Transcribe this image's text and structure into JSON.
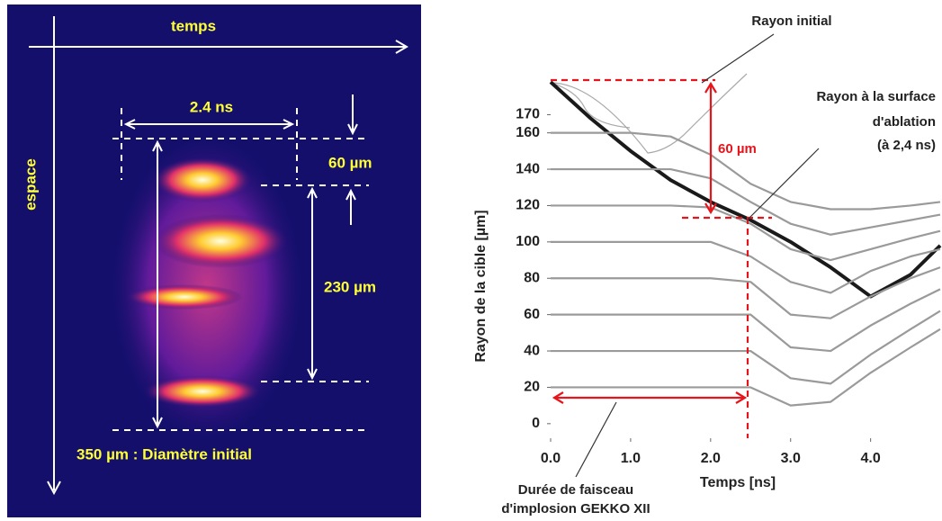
{
  "image_panel": {
    "time_label": "temps",
    "space_label": "espace",
    "duration": "2.4 ns",
    "gap": "60 µm",
    "span": "230 µm",
    "diameter": "350 µm : Diamètre initial"
  },
  "chart_data": {
    "type": "line",
    "y_label": "Rayon de la cible [µm]",
    "x_label": "Temps [ns]",
    "annotations": [
      "Rayon initial",
      "Rayon à la surface",
      "d'ablation",
      "(à 2,4 ns)",
      "60 µm",
      "Durée de faisceau",
      "d'implosion GEKKO XII"
    ],
    "xlim": [
      0,
      4.87
    ],
    "ylim": [
      -8,
      192.5
    ],
    "xticks": [
      {
        "value": 0,
        "label": "0.0"
      },
      {
        "value": 1,
        "label": "1.0"
      },
      {
        "value": 2,
        "label": "2.0"
      },
      {
        "value": 3,
        "label": "3.0"
      },
      {
        "value": 4,
        "label": "4.0"
      }
    ],
    "yticks": [
      0,
      20,
      40,
      60,
      80,
      100,
      120,
      140,
      160,
      170
    ],
    "x": [
      0,
      0.5,
      1,
      1.5,
      2,
      2.5,
      3,
      3.5,
      4,
      4.5,
      4.87
    ],
    "series": [
      {
        "color": "#1a1a1a",
        "values": [
          188,
          168,
          150,
          134,
          122,
          112,
          100,
          86,
          70,
          82,
          98
        ]
      },
      {
        "color": "#9a9a9a",
        "values": [
          160,
          160,
          160,
          158,
          148,
          132,
          122,
          118,
          118,
          120,
          122
        ]
      },
      {
        "color": "#9a9a9a",
        "values": [
          140,
          140,
          140,
          140,
          135,
          122,
          110,
          104,
          108,
          112,
          115
        ]
      },
      {
        "color": "#9a9a9a",
        "values": [
          120,
          120,
          120,
          120,
          119,
          110,
          96,
          90,
          96,
          102,
          106
        ]
      },
      {
        "color": "#9a9a9a",
        "values": [
          100,
          100,
          100,
          100,
          100,
          92,
          78,
          72,
          84,
          92,
          96
        ]
      },
      {
        "color": "#9a9a9a",
        "values": [
          80,
          80,
          80,
          80,
          80,
          78,
          60,
          58,
          70,
          80,
          86
        ]
      },
      {
        "color": "#9a9a9a",
        "values": [
          60,
          60,
          60,
          60,
          60,
          60,
          42,
          40,
          54,
          66,
          74
        ]
      },
      {
        "color": "#9a9a9a",
        "values": [
          40,
          40,
          40,
          40,
          40,
          40,
          25,
          22,
          38,
          52,
          62
        ]
      },
      {
        "color": "#9a9a9a",
        "values": [
          20,
          20,
          20,
          20,
          20,
          20,
          10,
          12,
          28,
          42,
          52
        ]
      }
    ]
  }
}
